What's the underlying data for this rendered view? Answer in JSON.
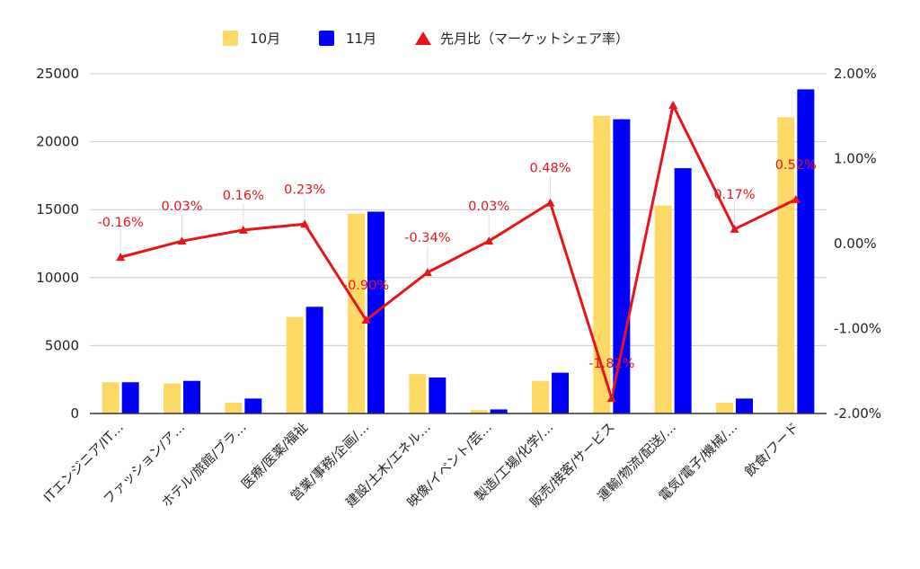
{
  "chart_data": {
    "type": "bar+line",
    "categories": [
      "ITエンジニア/IT…",
      "ファッション/ア…",
      "ホテル/旅館/ブラ…",
      "医療/医薬/福祉",
      "営業/事務/企画/…",
      "建設/土木/エネル…",
      "映像/イベント/芸…",
      "製造/工場/化学/…",
      "販売/接客/サービス",
      "運輸/物流/配送/…",
      "電気/電子/機械/…",
      "飲食/フード"
    ],
    "series": [
      {
        "name": "10月",
        "type": "bar",
        "axis": "left",
        "color": "#ffd966",
        "values": [
          2300,
          2200,
          800,
          7100,
          14700,
          2900,
          250,
          2400,
          21900,
          15300,
          800,
          21800
        ]
      },
      {
        "name": "11月",
        "type": "bar",
        "axis": "left",
        "color": "#0000ff",
        "values": [
          2300,
          2400,
          1100,
          7850,
          14850,
          2650,
          300,
          3000,
          21650,
          18050,
          1100,
          23850
        ]
      },
      {
        "name": "先月比（マーケットシェア率）",
        "type": "line",
        "axis": "right",
        "color": "#e8141b",
        "values": [
          -0.16,
          0.03,
          0.16,
          0.23,
          -0.9,
          -0.34,
          0.03,
          0.48,
          -1.82,
          1.63,
          0.17,
          0.52
        ],
        "labels": [
          "-0.16%",
          "0.03%",
          "0.16%",
          "0.23%",
          "-0.90%",
          "-0.34%",
          "0.03%",
          "0.48%",
          "-1.82%",
          "",
          "0.17%",
          "0.52%"
        ]
      }
    ],
    "y_left": {
      "ticks": [
        0,
        5000,
        10000,
        15000,
        20000,
        25000
      ],
      "labels": [
        "0",
        "5000",
        "10000",
        "15000",
        "20000",
        "25000"
      ],
      "ylim": [
        0,
        25000
      ]
    },
    "y_right": {
      "ticks": [
        -2,
        -1,
        0,
        1,
        2
      ],
      "labels": [
        "-2.00%",
        "-1.00%",
        "0.00%",
        "1.00%",
        "2.00%"
      ],
      "ylim": [
        -2,
        2
      ]
    },
    "grid": true,
    "legend": "top"
  }
}
